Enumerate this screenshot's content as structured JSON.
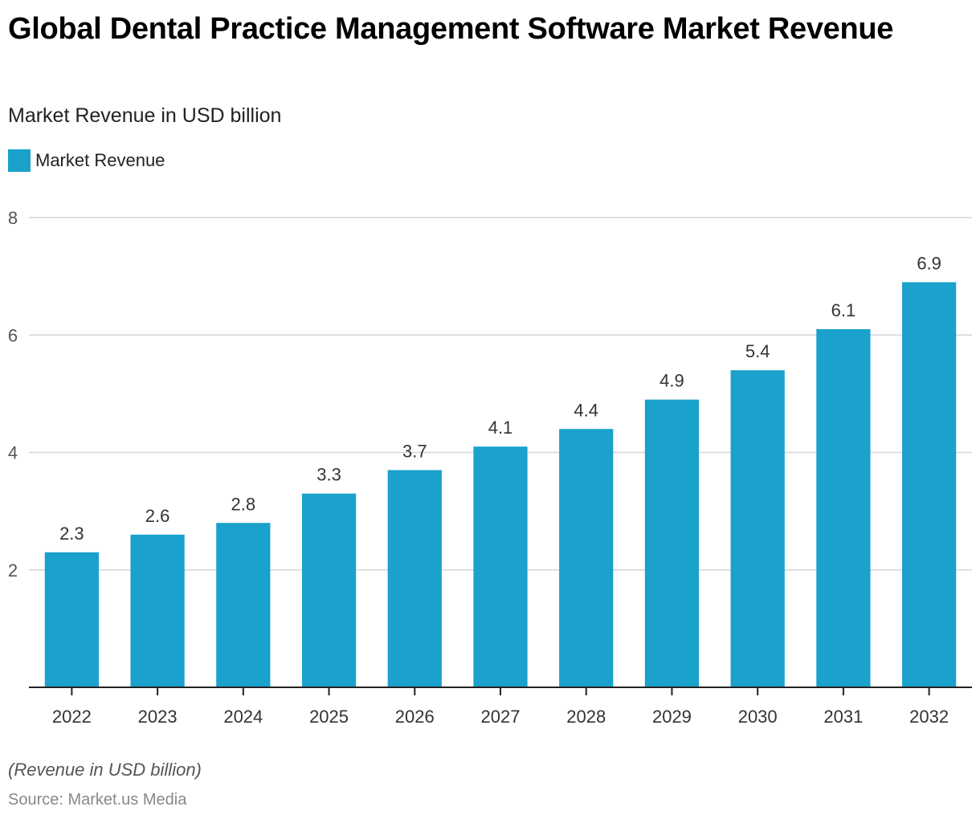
{
  "chart_data": {
    "type": "bar",
    "title": "Global Dental Practice Management Software Market Revenue",
    "subtitle": "Market Revenue in USD billion",
    "xlabel": "",
    "ylabel": "",
    "categories": [
      "2022",
      "2023",
      "2024",
      "2025",
      "2026",
      "2027",
      "2028",
      "2029",
      "2030",
      "2031",
      "2032"
    ],
    "series": [
      {
        "name": "Market Revenue",
        "color": "#1aa1cc",
        "values": [
          2.3,
          2.6,
          2.8,
          3.3,
          3.7,
          4.1,
          4.4,
          4.9,
          5.4,
          6.1,
          6.9
        ],
        "labels": [
          "2.3",
          "2.6",
          "2.8",
          "3.3",
          "3.7",
          "4.1",
          "4.4",
          "4.9",
          "5.4",
          "6.1",
          "6.9"
        ]
      }
    ],
    "ylim": [
      0,
      8
    ],
    "yticks": [
      2,
      4,
      6,
      8
    ],
    "grid": true,
    "legend": "top-left",
    "note": "(Revenue in USD billion)",
    "source": "Source: Market.us Media"
  }
}
